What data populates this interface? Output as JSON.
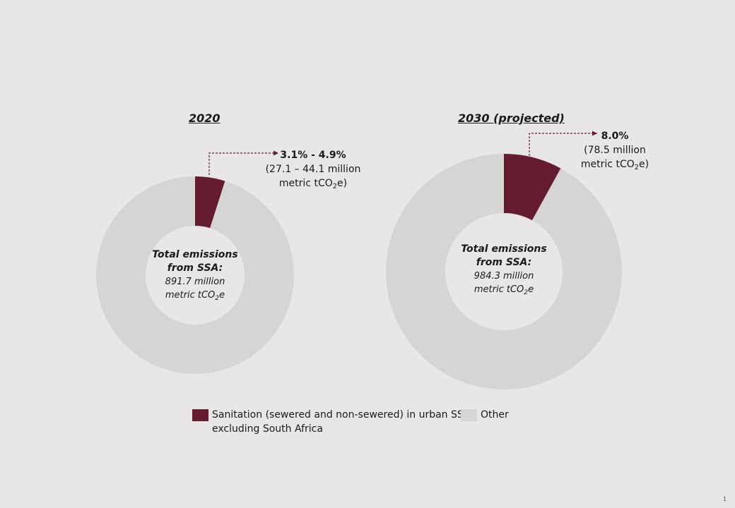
{
  "colors": {
    "sanitation": "#661c30",
    "other": "#d6d5d3",
    "background": "#e8e7e5"
  },
  "chart_data": [
    {
      "type": "pie",
      "title": "2020",
      "slices": [
        {
          "label": "Sanitation (sewered and non-sewered) in urban SSA excluding South Africa",
          "value": 4.9
        },
        {
          "label": "Other",
          "value": 95.1
        }
      ],
      "callout": {
        "value_text": "3.1% - 4.9%",
        "detail_line1": "(27.1 – 44.1 million",
        "detail_line2_prefix": "metric tCO",
        "detail_sub": "2",
        "detail_suffix": "e)"
      },
      "center": {
        "label_line1": "Total emissions",
        "label_line2": "from SSA:",
        "value_line": "891.7 million",
        "unit_prefix": "metric tCO",
        "unit_sub": "2",
        "unit_suffix": "e"
      }
    },
    {
      "type": "pie",
      "title": "2030 (projected)",
      "slices": [
        {
          "label": "Sanitation (sewered and non-sewered) in urban SSA excluding South Africa",
          "value": 8.0
        },
        {
          "label": "Other",
          "value": 92.0
        }
      ],
      "callout": {
        "value_text": "8.0%",
        "detail_line1": "(78.5 million",
        "detail_line2_prefix": "metric tCO",
        "detail_sub": "2",
        "detail_suffix": "e)"
      },
      "center": {
        "label_line1": "Total emissions",
        "label_line2": "from SSA:",
        "value_line": "984.3 million",
        "unit_prefix": "metric tCO",
        "unit_sub": "2",
        "unit_suffix": "e"
      }
    }
  ],
  "legend": {
    "sanitation_line1": "Sanitation (sewered and non-sewered) in urban SSA",
    "sanitation_line2": "excluding South Africa",
    "other": "Other"
  },
  "page_number": "1"
}
